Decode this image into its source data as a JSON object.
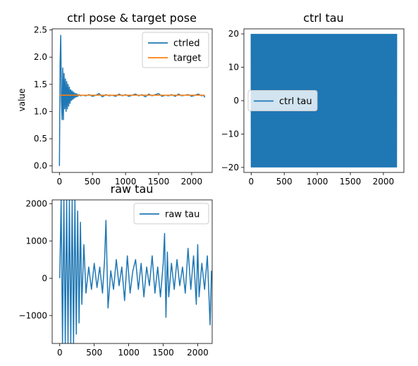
{
  "figure": {
    "background": "#ffffff"
  },
  "chart_data": [
    {
      "id": "ax1",
      "type": "line",
      "title": "ctrl pose & target pose",
      "xlabel": "",
      "ylabel": "value",
      "xlim": [
        -110,
        2310
      ],
      "ylim": [
        -0.12,
        2.52
      ],
      "xticks": [
        0,
        500,
        1000,
        1500,
        2000
      ],
      "yticks": [
        0.0,
        0.5,
        1.0,
        1.5,
        2.0,
        2.5
      ],
      "ytick_labels": [
        "0.0",
        "0.5",
        "1.0",
        "1.5",
        "2.0",
        "2.5"
      ],
      "legend": {
        "position": "upper-right"
      },
      "series": [
        {
          "name": "ctrled",
          "color": "#1f77b4",
          "x": [
            0,
            10,
            20,
            30,
            40,
            50,
            60,
            70,
            80,
            90,
            100,
            110,
            120,
            130,
            140,
            150,
            160,
            170,
            180,
            190,
            200,
            210,
            220,
            230,
            240,
            250,
            260,
            270,
            280,
            300,
            320,
            350,
            400,
            450,
            500,
            550,
            600,
            650,
            700,
            750,
            800,
            850,
            900,
            950,
            1000,
            1050,
            1100,
            1150,
            1200,
            1250,
            1300,
            1350,
            1400,
            1450,
            1500,
            1550,
            1600,
            1650,
            1700,
            1750,
            1800,
            1850,
            1900,
            1950,
            2000,
            2050,
            2100,
            2150,
            2180,
            2200
          ],
          "values": [
            0.0,
            1.9,
            2.4,
            1.2,
            0.85,
            1.8,
            0.85,
            1.7,
            1.05,
            1.6,
            1.0,
            1.55,
            1.05,
            1.5,
            1.1,
            1.45,
            1.15,
            1.4,
            1.2,
            1.38,
            1.22,
            1.36,
            1.24,
            1.34,
            1.26,
            1.33,
            1.27,
            1.32,
            1.28,
            1.31,
            1.29,
            1.3,
            1.29,
            1.31,
            1.28,
            1.3,
            1.33,
            1.27,
            1.31,
            1.29,
            1.3,
            1.28,
            1.32,
            1.29,
            1.31,
            1.28,
            1.3,
            1.32,
            1.29,
            1.31,
            1.27,
            1.32,
            1.29,
            1.31,
            1.33,
            1.28,
            1.3,
            1.29,
            1.31,
            1.28,
            1.32,
            1.29,
            1.3,
            1.31,
            1.28,
            1.3,
            1.32,
            1.29,
            1.3,
            1.26
          ]
        },
        {
          "name": "target",
          "color": "#ff7f0e",
          "x": [
            0,
            2200
          ],
          "values": [
            1.3,
            1.3
          ]
        }
      ]
    },
    {
      "id": "ax2",
      "type": "line",
      "title": "ctrl tau",
      "xlabel": "",
      "ylabel": "",
      "xlim": [
        -110,
        2310
      ],
      "ylim": [
        -21.5,
        21.5
      ],
      "xticks": [
        0,
        500,
        1000,
        1500,
        2000
      ],
      "yticks": [
        -20,
        -10,
        0,
        10,
        20
      ],
      "ytick_labels": [
        "−20",
        "−10",
        "0",
        "10",
        "20"
      ],
      "legend": {
        "position": "center-left"
      },
      "series": [
        {
          "name": "ctrl tau",
          "color": "#1f77b4",
          "pattern": "bang-bang oscillation between -20 and 20",
          "x_range": [
            0,
            2200
          ],
          "amplitude": 20
        }
      ]
    },
    {
      "id": "ax3",
      "type": "line",
      "title": "raw tau",
      "xlabel": "",
      "ylabel": "",
      "xlim": [
        -110,
        2210
      ],
      "ylim": [
        -1750,
        2100
      ],
      "xticks": [
        0,
        500,
        1000,
        1500,
        2000
      ],
      "yticks": [
        -1000,
        0,
        1000,
        2000
      ],
      "ytick_labels": [
        "−1000",
        "0",
        "1000",
        "2000"
      ],
      "legend": {
        "position": "upper-right"
      },
      "series": [
        {
          "name": "raw tau",
          "color": "#1f77b4",
          "x": [
            0,
            20,
            40,
            60,
            80,
            100,
            120,
            140,
            160,
            180,
            200,
            220,
            240,
            260,
            280,
            300,
            320,
            350,
            380,
            420,
            460,
            500,
            540,
            580,
            620,
            650,
            670,
            700,
            740,
            780,
            820,
            860,
            900,
            940,
            980,
            1020,
            1060,
            1100,
            1140,
            1180,
            1220,
            1260,
            1300,
            1340,
            1380,
            1420,
            1460,
            1500,
            1520,
            1540,
            1560,
            1580,
            1620,
            1660,
            1700,
            1740,
            1780,
            1820,
            1860,
            1900,
            1940,
            1980,
            2000,
            2020,
            2060,
            2100,
            2140,
            2180,
            2200
          ],
          "values": [
            0,
            2100,
            -1750,
            2100,
            -1750,
            2100,
            -1750,
            2100,
            -1750,
            2100,
            -1750,
            2100,
            -1500,
            1800,
            -1200,
            1500,
            -700,
            900,
            -400,
            300,
            -300,
            400,
            -250,
            300,
            -400,
            500,
            1550,
            -800,
            200,
            -300,
            500,
            -200,
            300,
            -600,
            600,
            -400,
            200,
            500,
            -300,
            400,
            -500,
            300,
            -200,
            600,
            -400,
            300,
            -500,
            400,
            1200,
            -1050,
            700,
            -500,
            400,
            -300,
            500,
            -200,
            300,
            -400,
            800,
            -300,
            600,
            -700,
            900,
            -500,
            400,
            -300,
            600,
            -1250,
            200
          ]
        }
      ]
    }
  ]
}
